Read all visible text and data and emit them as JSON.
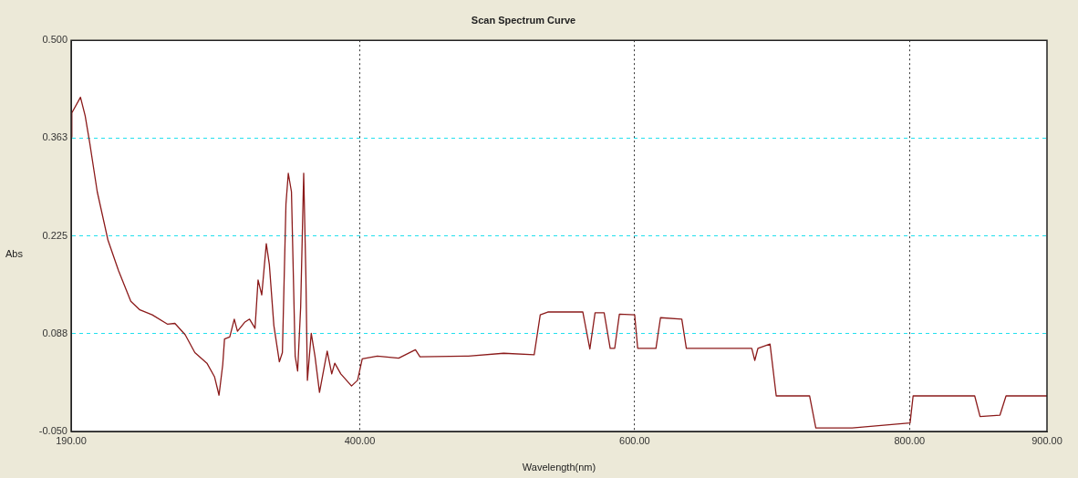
{
  "chart_data": {
    "type": "line",
    "title": "Scan Spectrum Curve",
    "xlabel": "Wavelength(nm)",
    "ylabel": "Abs",
    "xlim": [
      190,
      900
    ],
    "xticks": [
      {
        "value": 190,
        "label": "190.00"
      },
      {
        "value": 400,
        "label": "400.00"
      },
      {
        "value": 600,
        "label": "600.00"
      },
      {
        "value": 800,
        "label": "800.00"
      },
      {
        "value": 900,
        "label": "900.00"
      }
    ],
    "ylim": [
      -0.05,
      0.5
    ],
    "yticks": [
      {
        "value": -0.05,
        "label": "-0.050"
      },
      {
        "value": 0.0875,
        "label": "0.088"
      },
      0.225,
      {
        "value": 0.3625,
        "label": "0.363"
      },
      {
        "value": 0.5,
        "label": "0.500"
      }
    ],
    "grid": true,
    "legend": false,
    "marker": "none",
    "line_style": "solid",
    "series": [
      {
        "color": "#8b1a1a",
        "x": [
          190,
          190.5,
          196.8,
          200.2,
          203.5,
          209,
          216.8,
          224.5,
          233.4,
          240,
          249,
          260,
          265.5,
          273,
          280,
          288.8,
          294.3,
          297.6,
          300.3,
          301.6,
          305.4,
          308.7,
          311,
          316.5,
          319.8,
          323.8,
          326,
          328.7,
          332,
          334.2,
          337.5,
          341.5,
          343.7,
          346.3,
          348,
          350.3,
          353,
          354.8,
          357,
          359.2,
          360.8,
          361.9,
          364.7,
          367.4,
          370.7,
          376.3,
          379.6,
          381.8,
          386.2,
          394,
          398.4,
          401.8,
          412.8,
          428.3,
          440.5,
          443.8,
          479,
          504.7,
          526.9,
          531.3,
          536.8,
          562.3,
          567.4,
          571.2,
          577.8,
          582.2,
          585.5,
          588.9,
          600,
          602.2,
          615.5,
          618.8,
          634.3,
          637.6,
          685.2,
          687.4,
          689.7,
          698.5,
          703,
          727.3,
          731.8,
          758.3,
          800.4,
          802.6,
          847.4,
          851.3,
          865.8,
          870.2,
          900
        ],
        "values": [
          0.364,
          0.398,
          0.42,
          0.394,
          0.356,
          0.287,
          0.219,
          0.176,
          0.133,
          0.121,
          0.114,
          0.101,
          0.102,
          0.086,
          0.061,
          0.046,
          0.027,
          0.001,
          0.044,
          0.08,
          0.083,
          0.108,
          0.091,
          0.104,
          0.108,
          0.095,
          0.163,
          0.142,
          0.214,
          0.185,
          0.099,
          0.048,
          0.061,
          0.27,
          0.313,
          0.287,
          0.056,
          0.035,
          0.125,
          0.313,
          0.168,
          0.022,
          0.088,
          0.056,
          0.005,
          0.063,
          0.031,
          0.046,
          0.031,
          0.014,
          0.022,
          0.052,
          0.056,
          0.053,
          0.065,
          0.055,
          0.056,
          0.06,
          0.058,
          0.114,
          0.118,
          0.118,
          0.066,
          0.117,
          0.117,
          0.067,
          0.067,
          0.115,
          0.114,
          0.067,
          0.067,
          0.11,
          0.108,
          0.067,
          0.067,
          0.05,
          0.067,
          0.073,
          0,
          0,
          -0.045,
          -0.045,
          -0.038,
          0,
          0,
          -0.029,
          -0.027,
          0,
          0
        ]
      }
    ]
  }
}
